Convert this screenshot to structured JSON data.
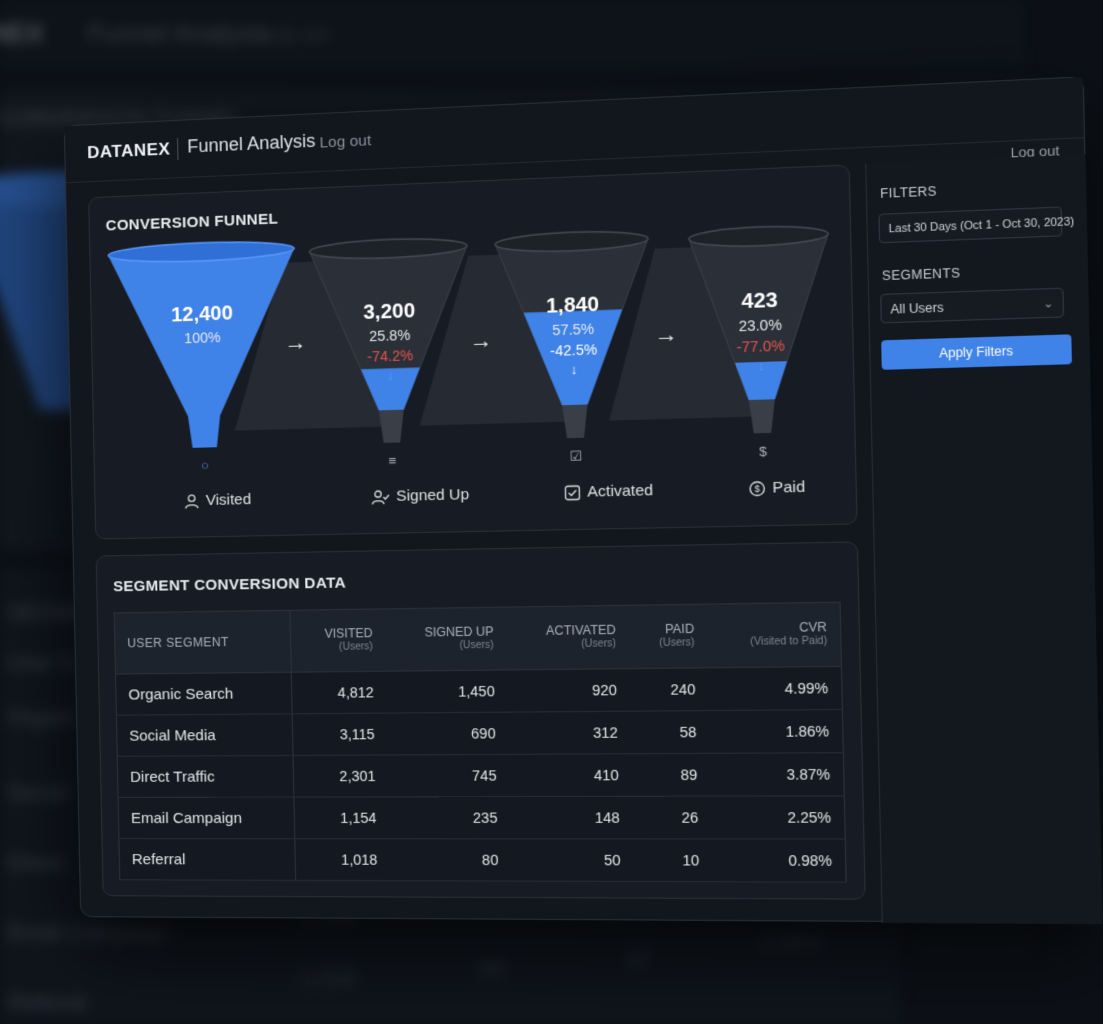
{
  "app": {
    "brand": "DATANEX",
    "page_title": "Funnel Analysis",
    "logout_label": "Log out",
    "logout_right_label": "Log out"
  },
  "funnel": {
    "title": "CONVERSION FUNNEL",
    "stages": [
      {
        "label": "Visited",
        "icon": "user-icon",
        "value": "12,400",
        "rate": "100%",
        "drop": "",
        "fill_fraction": 1.0
      },
      {
        "label": "Signed Up",
        "icon": "user-check-icon",
        "value": "3,200",
        "rate": "25.8%",
        "drop": "-74.2%",
        "fill_fraction": 0.258
      },
      {
        "label": "Activated",
        "icon": "checkbox-icon",
        "value": "1,840",
        "rate": "57.5%",
        "drop": "-42.5%",
        "fill_fraction": 0.575
      },
      {
        "label": "Paid",
        "icon": "dollar-icon",
        "value": "423",
        "rate": "23.0%",
        "drop": "-77.0%",
        "fill_fraction": 0.23
      }
    ],
    "colors": {
      "fill": "#3f82e8",
      "empty": "#2b3038",
      "drop": "#e5534b"
    }
  },
  "table": {
    "title": "SEGMENT CONVERSION DATA",
    "columns": [
      {
        "label": "USER SEGMENT",
        "sub": ""
      },
      {
        "label": "VISITED",
        "sub": "(Users)"
      },
      {
        "label": "SIGNED UP",
        "sub": "(Users)"
      },
      {
        "label": "ACTIVATED",
        "sub": "(Users)"
      },
      {
        "label": "PAID",
        "sub": "(Users)"
      },
      {
        "label": "CVR",
        "sub": "(Visited to Paid)"
      }
    ],
    "rows": [
      [
        "Organic Search",
        "4,812",
        "1,450",
        "920",
        "240",
        "4.99%"
      ],
      [
        "Social Media",
        "3,115",
        "690",
        "312",
        "58",
        "1.86%"
      ],
      [
        "Direct Traffic",
        "2,301",
        "745",
        "410",
        "89",
        "3.87%"
      ],
      [
        "Email Campaign",
        "1,154",
        "235",
        "148",
        "26",
        "2.25%"
      ],
      [
        "Referral",
        "1,018",
        "80",
        "50",
        "10",
        "0.98%"
      ]
    ]
  },
  "sidebar": {
    "filters_title": "FILTERS",
    "date_range": "Last 30 Days (Oct 1 - Oct 30, 2023)",
    "segments_title": "SEGMENTS",
    "segment_selected": "All Users",
    "apply_label": "Apply Filters"
  }
}
